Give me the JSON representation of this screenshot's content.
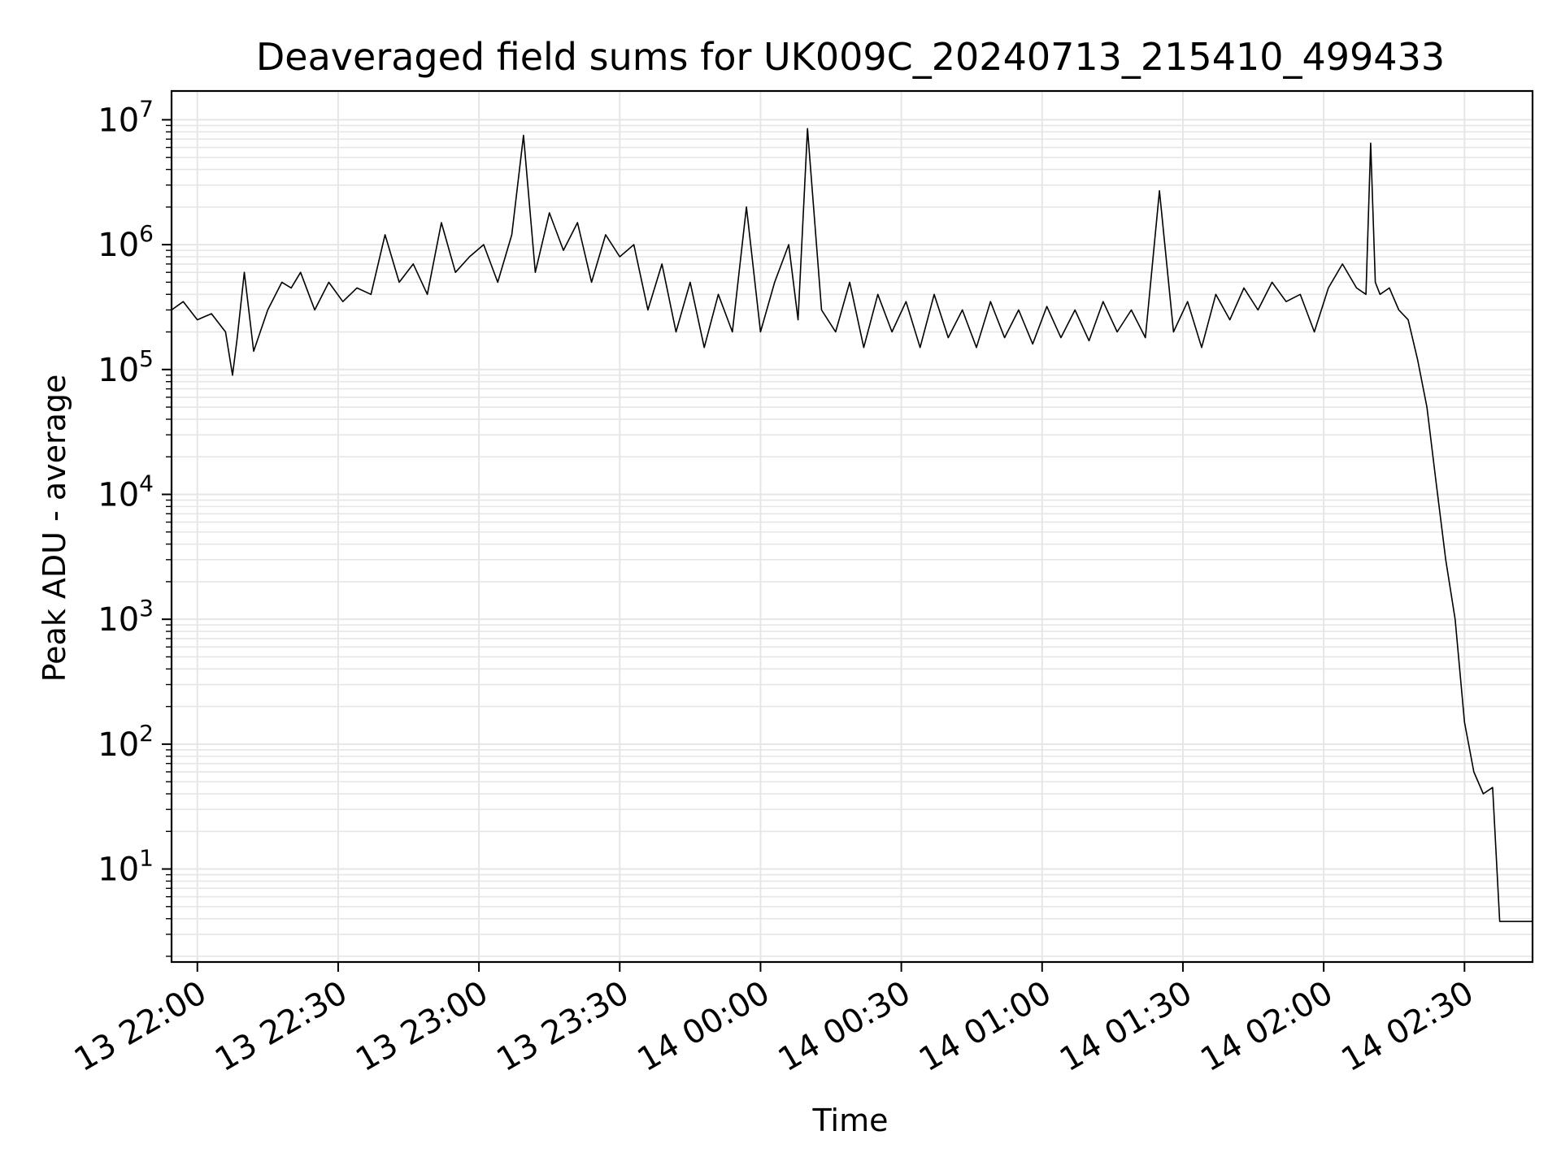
{
  "chart_data": {
    "type": "line",
    "title": "Deaveraged field sums for UK009C_20240713_215410_499433",
    "xlabel": "Time",
    "ylabel": "Peak ADU - average",
    "y_scale": "log",
    "ylim": [
      1.8,
      17000000
    ],
    "xlim": [
      "2024-07-13 21:54:30",
      "2024-07-14 02:44:30"
    ],
    "grid": true,
    "line_color": "#000000",
    "grid_color": "#e6e6e6",
    "x_ticks": [
      {
        "t": "2024-07-13 22:00",
        "label": "13 22:00"
      },
      {
        "t": "2024-07-13 22:30",
        "label": "13 22:30"
      },
      {
        "t": "2024-07-13 23:00",
        "label": "13 23:00"
      },
      {
        "t": "2024-07-13 23:30",
        "label": "13 23:30"
      },
      {
        "t": "2024-07-14 00:00",
        "label": "14 00:00"
      },
      {
        "t": "2024-07-14 00:30",
        "label": "14 00:30"
      },
      {
        "t": "2024-07-14 01:00",
        "label": "14 01:00"
      },
      {
        "t": "2024-07-14 01:30",
        "label": "14 01:30"
      },
      {
        "t": "2024-07-14 02:00",
        "label": "14 02:00"
      },
      {
        "t": "2024-07-14 02:30",
        "label": "14 02:30"
      }
    ],
    "y_ticks": [
      {
        "value": 10,
        "base": "10",
        "exp": "1"
      },
      {
        "value": 100,
        "base": "10",
        "exp": "2"
      },
      {
        "value": 1000,
        "base": "10",
        "exp": "3"
      },
      {
        "value": 10000,
        "base": "10",
        "exp": "4"
      },
      {
        "value": 100000,
        "base": "10",
        "exp": "5"
      },
      {
        "value": 1000000,
        "base": "10",
        "exp": "6"
      },
      {
        "value": 10000000,
        "base": "10",
        "exp": "7"
      }
    ],
    "series": [
      {
        "x": [
          "2024-07-13 21:54:30",
          "2024-07-13 21:57:00",
          "2024-07-13 22:00:00",
          "2024-07-13 22:03:00",
          "2024-07-13 22:06:00",
          "2024-07-13 22:07:30",
          "2024-07-13 22:08:30",
          "2024-07-13 22:10:00",
          "2024-07-13 22:12:00",
          "2024-07-13 22:15:00",
          "2024-07-13 22:18:00",
          "2024-07-13 22:20:00",
          "2024-07-13 22:22:00",
          "2024-07-13 22:25:00",
          "2024-07-13 22:28:00",
          "2024-07-13 22:31:00",
          "2024-07-13 22:34:00",
          "2024-07-13 22:37:00",
          "2024-07-13 22:40:00",
          "2024-07-13 22:43:00",
          "2024-07-13 22:46:00",
          "2024-07-13 22:49:00",
          "2024-07-13 22:52:00",
          "2024-07-13 22:55:00",
          "2024-07-13 22:58:00",
          "2024-07-13 23:01:00",
          "2024-07-13 23:04:00",
          "2024-07-13 23:07:00",
          "2024-07-13 23:09:30",
          "2024-07-13 23:12:00",
          "2024-07-13 23:15:00",
          "2024-07-13 23:18:00",
          "2024-07-13 23:21:00",
          "2024-07-13 23:24:00",
          "2024-07-13 23:27:00",
          "2024-07-13 23:30:00",
          "2024-07-13 23:33:00",
          "2024-07-13 23:36:00",
          "2024-07-13 23:39:00",
          "2024-07-13 23:42:00",
          "2024-07-13 23:45:00",
          "2024-07-13 23:48:00",
          "2024-07-13 23:51:00",
          "2024-07-13 23:54:00",
          "2024-07-13 23:57:00",
          "2024-07-14 00:00:00",
          "2024-07-14 00:03:00",
          "2024-07-14 00:06:00",
          "2024-07-14 00:08:00",
          "2024-07-14 00:10:00",
          "2024-07-14 00:13:00",
          "2024-07-14 00:16:00",
          "2024-07-14 00:19:00",
          "2024-07-14 00:22:00",
          "2024-07-14 00:25:00",
          "2024-07-14 00:28:00",
          "2024-07-14 00:31:00",
          "2024-07-14 00:34:00",
          "2024-07-14 00:37:00",
          "2024-07-14 00:40:00",
          "2024-07-14 00:43:00",
          "2024-07-14 00:46:00",
          "2024-07-14 00:49:00",
          "2024-07-14 00:52:00",
          "2024-07-14 00:55:00",
          "2024-07-14 00:58:00",
          "2024-07-14 01:01:00",
          "2024-07-14 01:04:00",
          "2024-07-14 01:07:00",
          "2024-07-14 01:10:00",
          "2024-07-14 01:13:00",
          "2024-07-14 01:16:00",
          "2024-07-14 01:19:00",
          "2024-07-14 01:22:00",
          "2024-07-14 01:25:00",
          "2024-07-14 01:28:00",
          "2024-07-14 01:31:00",
          "2024-07-14 01:34:00",
          "2024-07-14 01:37:00",
          "2024-07-14 01:40:00",
          "2024-07-14 01:43:00",
          "2024-07-14 01:46:00",
          "2024-07-14 01:49:00",
          "2024-07-14 01:52:00",
          "2024-07-14 01:55:00",
          "2024-07-14 01:58:00",
          "2024-07-14 02:01:00",
          "2024-07-14 02:04:00",
          "2024-07-14 02:07:00",
          "2024-07-14 02:09:00",
          "2024-07-14 02:10:00",
          "2024-07-14 02:11:00",
          "2024-07-14 02:12:00",
          "2024-07-14 02:14:00",
          "2024-07-14 02:16:00",
          "2024-07-14 02:18:00",
          "2024-07-14 02:20:00",
          "2024-07-14 02:22:00",
          "2024-07-14 02:24:00",
          "2024-07-14 02:26:00",
          "2024-07-14 02:28:00",
          "2024-07-14 02:30:00",
          "2024-07-14 02:32:00",
          "2024-07-14 02:34:00",
          "2024-07-14 02:36:00",
          "2024-07-14 02:37:30",
          "2024-07-14 02:38:00",
          "2024-07-14 02:39:00",
          "2024-07-14 02:44:30"
        ],
        "y": [
          300000,
          350000,
          250000,
          280000,
          200000,
          90000,
          180000,
          600000,
          140000,
          300000,
          500000,
          450000,
          600000,
          300000,
          500000,
          350000,
          450000,
          400000,
          1200000,
          500000,
          700000,
          400000,
          1500000,
          600000,
          800000,
          1000000,
          500000,
          1200000,
          7500000,
          600000,
          1800000,
          900000,
          1500000,
          500000,
          1200000,
          800000,
          1000000,
          300000,
          700000,
          200000,
          500000,
          150000,
          400000,
          200000,
          2000000,
          200000,
          500000,
          1000000,
          250000,
          8500000,
          300000,
          200000,
          500000,
          150000,
          400000,
          200000,
          350000,
          150000,
          400000,
          180000,
          300000,
          150000,
          350000,
          180000,
          300000,
          160000,
          320000,
          180000,
          300000,
          170000,
          350000,
          200000,
          300000,
          180000,
          2700000,
          200000,
          350000,
          150000,
          400000,
          250000,
          450000,
          300000,
          500000,
          350000,
          400000,
          200000,
          450000,
          700000,
          450000,
          400000,
          6500000,
          500000,
          400000,
          450000,
          300000,
          250000,
          120000,
          50000,
          12000,
          3000,
          1000,
          150,
          60,
          40,
          45,
          3.8,
          3.8,
          3.8,
          3.8
        ]
      }
    ]
  }
}
